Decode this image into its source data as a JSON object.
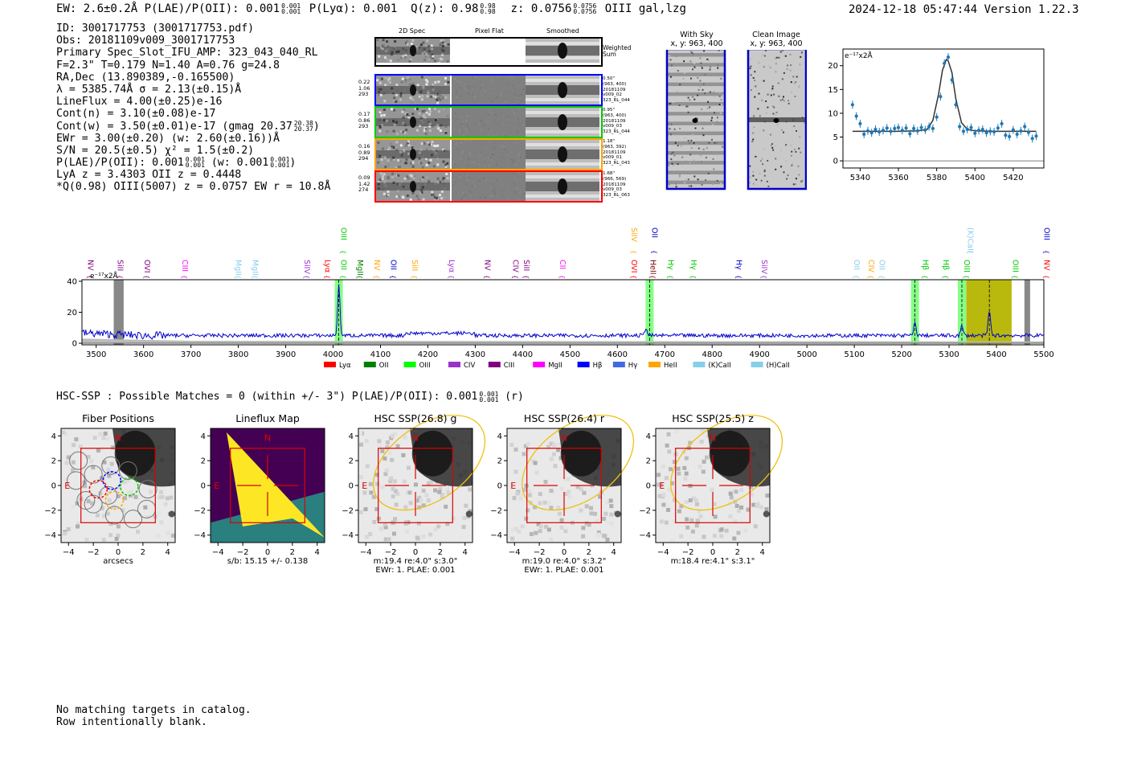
{
  "header": {
    "left": "EW: 2.6±0.2Å  P(LAE)/P(OII): 0.001",
    "plae_sup": "0.001",
    "plae_sub": "0.001",
    "plya": "P(Lyα): 0.001",
    "qz": "Q(z): 0.98",
    "qz_sup": "0.98",
    "qz_sub": "0.98",
    "z": "z: 0.0756",
    "z_sup": "0.0756",
    "z_sub": "0.0756",
    "line_id": "OIII  gal,lzg",
    "right": "2024-12-18 05:47:44  Version 1.22.3"
  },
  "info": {
    "l1": "ID: 3001717753 (3001717753.pdf)",
    "l2": "Obs: 20181109v009_3001717753",
    "l3": "Primary Spec_Slot_IFU_AMP: 323_043_040_RL",
    "l4": "F=2.3\"  T=0.179  N=1.40  A=0.76  g=24.8",
    "l5": "RA,Dec (13.890389,-0.165500)",
    "l6": "λ = 5385.74Å  σ = 2.13(±0.15)Å",
    "l7": "LineFlux = 4.00(±0.25)e-16",
    "l8": "Cont(n) = 3.10(±0.08)e-17",
    "l9a": "Cont(w) = 3.50(±0.01)e-17 (gmag 20.37",
    "l9sup": "20.38",
    "l9sub": "20.37",
    "l9b": ")",
    "l10": "EWr = 3.00(±0.20) (w: 2.60(±0.16))Å",
    "l11": "S/N = 20.5(±0.5)  χ² = 1.5(±0.2)",
    "l12a": "P(LAE)/P(OII): 0.001",
    "l12sup": "0.001",
    "l12sub": "0.001",
    "l12b": " (w: 0.001",
    "l12sup2": "0.001",
    "l12sub2": "0.001",
    "l12c": ")",
    "l13": "LyA z = 3.4303  OII z = 0.4448",
    "l14": "*Q(0.98) OIII(5007) z = 0.0757  EW r = 10.8Å"
  },
  "cutouts": {
    "col1": "2D Spec",
    "col2": "Pixel Flat",
    "col3": "Smoothed",
    "weighted": "Weighted Sum",
    "rows": [
      {
        "w1": "0.22",
        "w2": "1.06",
        "w3": "293",
        "d1": "0.50\"",
        "d2": "(963, 400)",
        "d3": "20181109",
        "d4": "v009_02",
        "d5": "323_RL_044",
        "color": "#0000ff"
      },
      {
        "w1": "0.17",
        "w2": "0.86",
        "w3": "293",
        "d1": "0.95\"",
        "d2": "(963, 400)",
        "d3": "20181109",
        "d4": "v009_03",
        "d5": "323_RL_044",
        "color": "#00cc00"
      },
      {
        "w1": "0.16",
        "w2": "0.89",
        "w3": "294",
        "d1": "1.18\"",
        "d2": "(963, 392)",
        "d3": "20181109",
        "d4": "v009_01",
        "d5": "323_RL_043",
        "color": "#ffa500"
      },
      {
        "w1": "0.09",
        "w2": "1.42",
        "w3": "274",
        "d1": "1.68\"",
        "d2": "(966, 569)",
        "d3": "20181109",
        "d4": "v009_03",
        "d5": "323_RL_063",
        "color": "#ff0000"
      }
    ]
  },
  "sky": {
    "t1": "With Sky",
    "t1b": "x, y: 963, 400",
    "t2": "Clean Image",
    "t2b": "x, y: 963, 400"
  },
  "zoom_plot": {
    "unit_label": "e⁻¹⁷x2Å",
    "xticks": [
      "5340",
      "5360",
      "5380",
      "5400",
      "5420"
    ],
    "yticks": [
      "0",
      "5",
      "10",
      "15",
      "20"
    ],
    "chart_data": {
      "type": "line",
      "x_range": [
        5331,
        5436
      ],
      "y_range": [
        -1.5,
        23.5
      ],
      "fit_x": [
        5336,
        5340,
        5350,
        5360,
        5370,
        5375,
        5378,
        5381,
        5383,
        5385,
        5386,
        5388,
        5390,
        5393,
        5396,
        5400,
        5410,
        5420,
        5432
      ],
      "fit_y": [
        6.2,
        6.2,
        6.2,
        6.2,
        6.3,
        6.6,
        8.5,
        14,
        19,
        21.3,
        21,
        18.5,
        13,
        8,
        6.6,
        6.3,
        6.2,
        6.2,
        6.2
      ],
      "points_x": [
        5336,
        5338,
        5340,
        5342,
        5344,
        5346,
        5348,
        5350,
        5352,
        5354,
        5356,
        5358,
        5360,
        5362,
        5364,
        5366,
        5368,
        5370,
        5372,
        5374,
        5376,
        5378,
        5380,
        5382,
        5384,
        5386,
        5388,
        5390,
        5392,
        5394,
        5396,
        5398,
        5400,
        5402,
        5404,
        5406,
        5408,
        5410,
        5412,
        5414,
        5416,
        5418,
        5420,
        5422,
        5424,
        5426,
        5428,
        5430,
        5432
      ],
      "points_y": [
        11.8,
        9.4,
        7.8,
        5.6,
        6.3,
        5.9,
        6.6,
        6.1,
        6.4,
        6.9,
        6.2,
        6.8,
        7.0,
        6.4,
        6.9,
        5.7,
        6.8,
        6.3,
        7.0,
        6.5,
        7.2,
        6.8,
        9.2,
        13.5,
        20.5,
        21.8,
        17.0,
        11.8,
        7.2,
        6.2,
        6.6,
        7.0,
        5.8,
        6.4,
        6.6,
        5.9,
        6.2,
        6.1,
        6.9,
        7.8,
        5.4,
        5.1,
        6.5,
        5.6,
        6.3,
        7.2,
        6.0,
        4.7,
        5.2
      ]
    }
  },
  "spectrum": {
    "unit_label": "e⁻¹⁷x2Å",
    "xticks": [
      "3500",
      "3600",
      "3700",
      "3800",
      "3900",
      "4000",
      "4100",
      "4200",
      "4300",
      "4400",
      "4500",
      "4600",
      "4700",
      "4800",
      "4900",
      "5000",
      "5100",
      "5200",
      "5300",
      "5400",
      "5500"
    ],
    "yticks": [
      "0",
      "20",
      "40"
    ],
    "chart_data": {
      "type": "line",
      "x_range": [
        3470,
        5500
      ],
      "y_range": [
        -1,
        41
      ],
      "peaks": [
        {
          "x": 4012,
          "y": 37
        },
        {
          "x": 4660,
          "y": 10
        },
        {
          "x": 5228,
          "y": 13
        },
        {
          "x": 5327,
          "y": 11
        },
        {
          "x": 5385,
          "y": 21
        }
      ]
    },
    "line_labels": [
      {
        "text": "NV",
        "x": 3478,
        "color": "#800080",
        "level": 0
      },
      {
        "text": "SiII",
        "x": 3540,
        "color": "#800080",
        "level": 0
      },
      {
        "text": "OVI",
        "x": 3597,
        "color": "#800080",
        "level": 0
      },
      {
        "text": "CIII",
        "x": 3677,
        "color": "#ff00ff",
        "level": 0
      },
      {
        "text": "MgII",
        "x": 3790,
        "color": "#87ceeb",
        "level": 0
      },
      {
        "text": "MgII",
        "x": 3825,
        "color": "#87ceeb",
        "level": 0
      },
      {
        "text": "SiIV",
        "x": 3935,
        "color": "#9932cc",
        "level": 0
      },
      {
        "text": "Lyα",
        "x": 3978,
        "color": "#ff0000",
        "level": 0
      },
      {
        "text": "OII",
        "x": 4012,
        "color": "#00cc00",
        "level": 0
      },
      {
        "text": "OIII",
        "x": 4012,
        "color": "#00cc00",
        "level": 1
      },
      {
        "text": "MgII",
        "x": 4047,
        "color": "#008000",
        "level": 0
      },
      {
        "text": "NV",
        "x": 4082,
        "color": "#ffa500",
        "level": 0
      },
      {
        "text": "OII",
        "x": 4117,
        "color": "#0000cd",
        "level": 0
      },
      {
        "text": "SiII",
        "x": 4162,
        "color": "#ffa500",
        "level": 0
      },
      {
        "text": "Lyα",
        "x": 4240,
        "color": "#9932cc",
        "level": 0
      },
      {
        "text": "NV",
        "x": 4315,
        "color": "#800080",
        "level": 0
      },
      {
        "text": "CIV",
        "x": 4375,
        "color": "#800080",
        "level": 0
      },
      {
        "text": "SiII",
        "x": 4398,
        "color": "#800080",
        "level": 0
      },
      {
        "text": "CII",
        "x": 4474,
        "color": "#ff00ff",
        "level": 0
      },
      {
        "text": "SiIV",
        "x": 4625,
        "color": "#ffa500",
        "level": 1
      },
      {
        "text": "OII",
        "x": 4668,
        "color": "#0000cd",
        "level": 1
      },
      {
        "text": "OVI",
        "x": 4625,
        "color": "#ff0000",
        "level": 0
      },
      {
        "text": "HeII",
        "x": 4665,
        "color": "#800000",
        "level": 0
      },
      {
        "text": "Hγ",
        "x": 4702,
        "color": "#00cc00",
        "level": 0
      },
      {
        "text": "Hγ",
        "x": 4750,
        "color": "#00cc00",
        "level": 0
      },
      {
        "text": "Hγ",
        "x": 4846,
        "color": "#0000cd",
        "level": 0
      },
      {
        "text": "SiIV",
        "x": 4900,
        "color": "#9932cc",
        "level": 0
      },
      {
        "text": "OII",
        "x": 5095,
        "color": "#87ceeb",
        "level": 0
      },
      {
        "text": "CIV",
        "x": 5125,
        "color": "#ffa500",
        "level": 0
      },
      {
        "text": "OII",
        "x": 5148,
        "color": "#87ceeb",
        "level": 0
      },
      {
        "text": "(K)CaII",
        "x": 5335,
        "color": "#87ceeb",
        "level": 1
      },
      {
        "text": "Hβ",
        "x": 5240,
        "color": "#00cc00",
        "level": 0
      },
      {
        "text": "Hβ",
        "x": 5283,
        "color": "#00cc00",
        "level": 0
      },
      {
        "text": "OIII",
        "x": 5327,
        "color": "#00cc00",
        "level": 0
      },
      {
        "text": "OIII",
        "x": 5430,
        "color": "#00cc00",
        "level": 0
      },
      {
        "text": "OIII",
        "x": 5496,
        "color": "#0000cd",
        "level": 1
      },
      {
        "text": "NV",
        "x": 5496,
        "color": "#ff0000",
        "level": 0
      }
    ],
    "legend": [
      {
        "text": "Lyα",
        "color": "#ff0000"
      },
      {
        "text": "OII",
        "color": "#008000"
      },
      {
        "text": "OIII",
        "color": "#00ff00"
      },
      {
        "text": "CIV",
        "color": "#9932cc"
      },
      {
        "text": "CIII",
        "color": "#800080"
      },
      {
        "text": "MgII",
        "color": "#ff00ff"
      },
      {
        "text": "Hβ",
        "color": "#0000ff"
      },
      {
        "text": "Hγ",
        "color": "#4169e1"
      },
      {
        "text": "HeII",
        "color": "#ffa500"
      },
      {
        "text": "(K)CaII",
        "color": "#87ceeb"
      },
      {
        "text": "(H)CaII",
        "color": "#87ceeb"
      }
    ]
  },
  "hsc": {
    "title": "HSC-SSP : Possible Matches = 0 (within +/- 3\")  P(LAE)/P(OII): 0.001",
    "sup": "0.001",
    "sub": "0.001",
    "tail": " (r)",
    "panels": [
      {
        "title": "Fiber Positions",
        "cap1": "arcsecs",
        "cap2": ""
      },
      {
        "title": "Lineflux Map",
        "cap1": "s/b: 15.15 +/- 0.138",
        "cap2": ""
      },
      {
        "title": "HSC SSP(26.8) g",
        "cap1": "m:19.4  re:4.0\"  s:3.0\"",
        "cap2": "EWr: 1. PLAE: 0.001"
      },
      {
        "title": "HSC SSP(26.4) r",
        "cap1": "m:19.0  re:4.0\"  s:3.2\"",
        "cap2": "EWr: 1. PLAE: 0.001"
      },
      {
        "title": "HSC SSP(25.5) z",
        "cap1": "m:18.4  re:4.1\"  s:3.1\"",
        "cap2": ""
      }
    ],
    "xticks": [
      "−4",
      "−2",
      "0",
      "2",
      "4"
    ],
    "yticks": [
      "4",
      "2",
      "0",
      "−2",
      "−4"
    ],
    "north": "N",
    "east": "E"
  },
  "footer": {
    "l1": "No matching targets in catalog.",
    "l2": "Row intentionally blank."
  }
}
